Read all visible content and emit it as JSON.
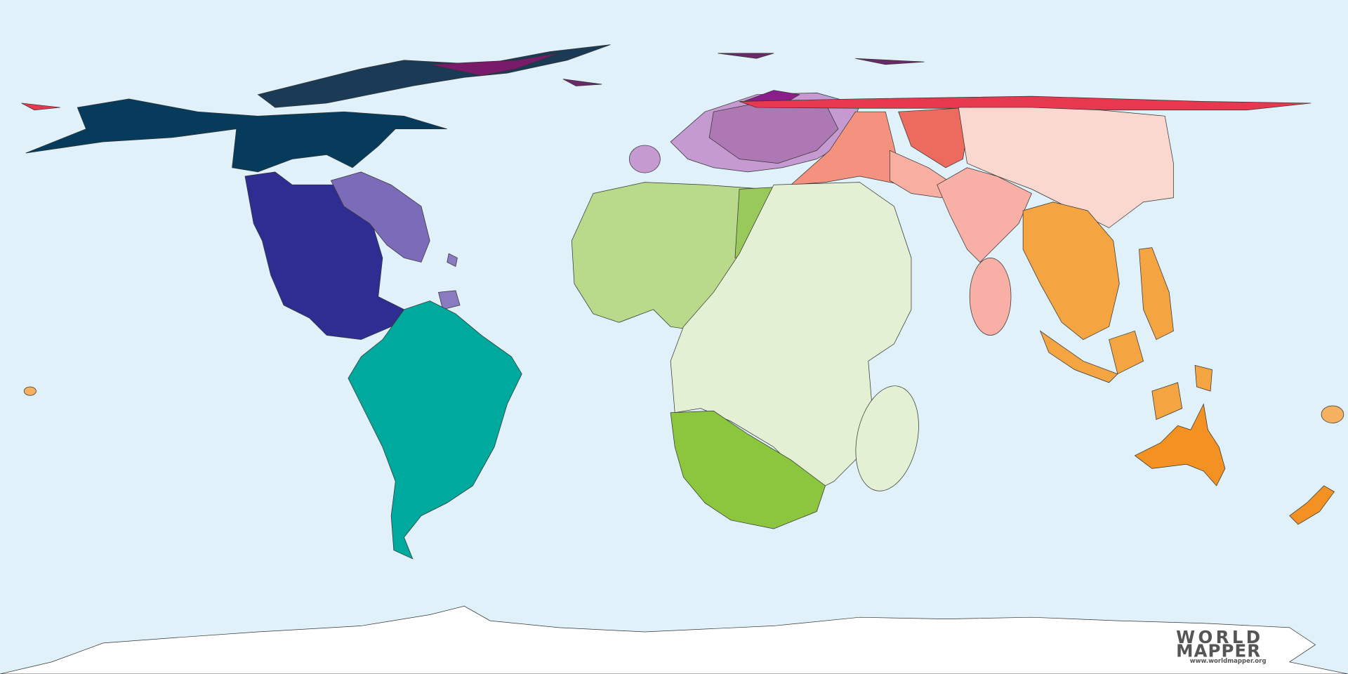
{
  "logo": {
    "line1": "WORLD",
    "line2": "MAPPER",
    "url": "www.worldmapper.org"
  }
}
